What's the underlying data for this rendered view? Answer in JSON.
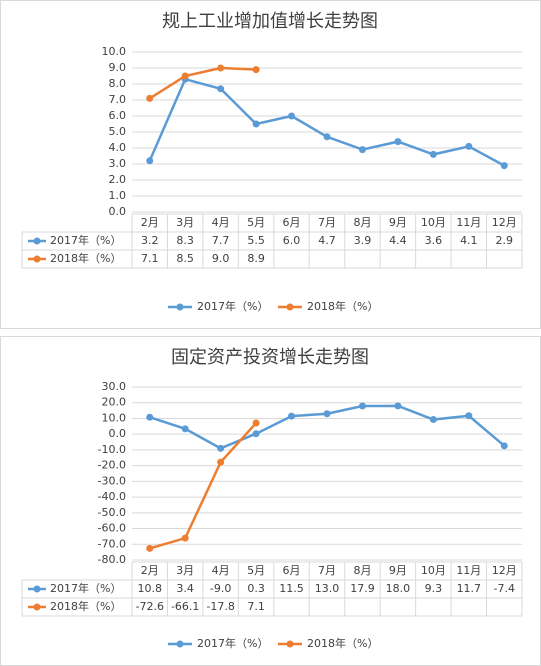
{
  "chart_data": [
    {
      "type": "line",
      "title": "规上工业增加值增长走势图",
      "categories": [
        "2月",
        "3月",
        "4月",
        "5月",
        "6月",
        "7月",
        "8月",
        "9月",
        "10月",
        "11月",
        "12月"
      ],
      "series": [
        {
          "name": "2017年（%）",
          "color": "#5b9bd5",
          "values": [
            3.2,
            8.3,
            7.7,
            5.5,
            6.0,
            4.7,
            3.9,
            4.4,
            3.6,
            4.1,
            2.9
          ],
          "value_labels": [
            "3.2",
            "8.3",
            "7.7",
            "5.5",
            "6.0",
            "4.7",
            "3.9",
            "4.4",
            "3.6",
            "4.1",
            "2.9"
          ]
        },
        {
          "name": "2018年（%）",
          "color": "#ed7d31",
          "values": [
            7.1,
            8.5,
            9.0,
            8.9,
            null,
            null,
            null,
            null,
            null,
            null,
            null
          ],
          "value_labels": [
            "7.1",
            "8.5",
            "9.0",
            "8.9",
            null,
            null,
            null,
            null,
            null,
            null,
            null
          ]
        }
      ],
      "ylim": [
        0,
        10
      ],
      "yticks": [
        {
          "value": 0,
          "label": "0.0"
        },
        {
          "value": 1,
          "label": "1.0"
        },
        {
          "value": 2,
          "label": "2.0"
        },
        {
          "value": 3,
          "label": "3.0"
        },
        {
          "value": 4,
          "label": "4.0"
        },
        {
          "value": 5,
          "label": "5.0"
        },
        {
          "value": 6,
          "label": "6.0"
        },
        {
          "value": 7,
          "label": "7.0"
        },
        {
          "value": 8,
          "label": "8.0"
        },
        {
          "value": 9,
          "label": "9.0"
        },
        {
          "value": 10,
          "label": "10.0"
        }
      ],
      "grid": true,
      "legend": "bottom"
    },
    {
      "type": "line",
      "title": "固定资产投资增长走势图",
      "categories": [
        "2月",
        "3月",
        "4月",
        "5月",
        "6月",
        "7月",
        "8月",
        "9月",
        "10月",
        "11月",
        "12月"
      ],
      "series": [
        {
          "name": "2017年（%）",
          "color": "#5b9bd5",
          "values": [
            10.8,
            3.4,
            -9.0,
            0.3,
            11.5,
            13.0,
            17.9,
            18.0,
            9.3,
            11.7,
            -7.4
          ],
          "value_labels": [
            "10.8",
            "3.4",
            "-9.0",
            "0.3",
            "11.5",
            "13.0",
            "17.9",
            "18.0",
            "9.3",
            "11.7",
            "-7.4"
          ]
        },
        {
          "name": "2018年（%）",
          "color": "#ed7d31",
          "values": [
            -72.6,
            -66.1,
            -17.8,
            7.1,
            null,
            null,
            null,
            null,
            null,
            null,
            null
          ],
          "value_labels": [
            "-72.6",
            "-66.1",
            "-17.8",
            "7.1",
            null,
            null,
            null,
            null,
            null,
            null,
            null
          ]
        }
      ],
      "ylim": [
        -80,
        30
      ],
      "yticks": [
        {
          "value": -80,
          "label": "-80.0"
        },
        {
          "value": -70,
          "label": "-70.0"
        },
        {
          "value": -60,
          "label": "-60.0"
        },
        {
          "value": -50,
          "label": "-50.0"
        },
        {
          "value": -40,
          "label": "-40.0"
        },
        {
          "value": -30,
          "label": "-30.0"
        },
        {
          "value": -20,
          "label": "-20.0"
        },
        {
          "value": -10,
          "label": "-10.0"
        },
        {
          "value": 0,
          "label": "0.0"
        },
        {
          "value": 10,
          "label": "10.0"
        },
        {
          "value": 20,
          "label": "20.0"
        },
        {
          "value": 30,
          "label": "30.0"
        }
      ],
      "grid": true,
      "legend": "bottom"
    }
  ]
}
